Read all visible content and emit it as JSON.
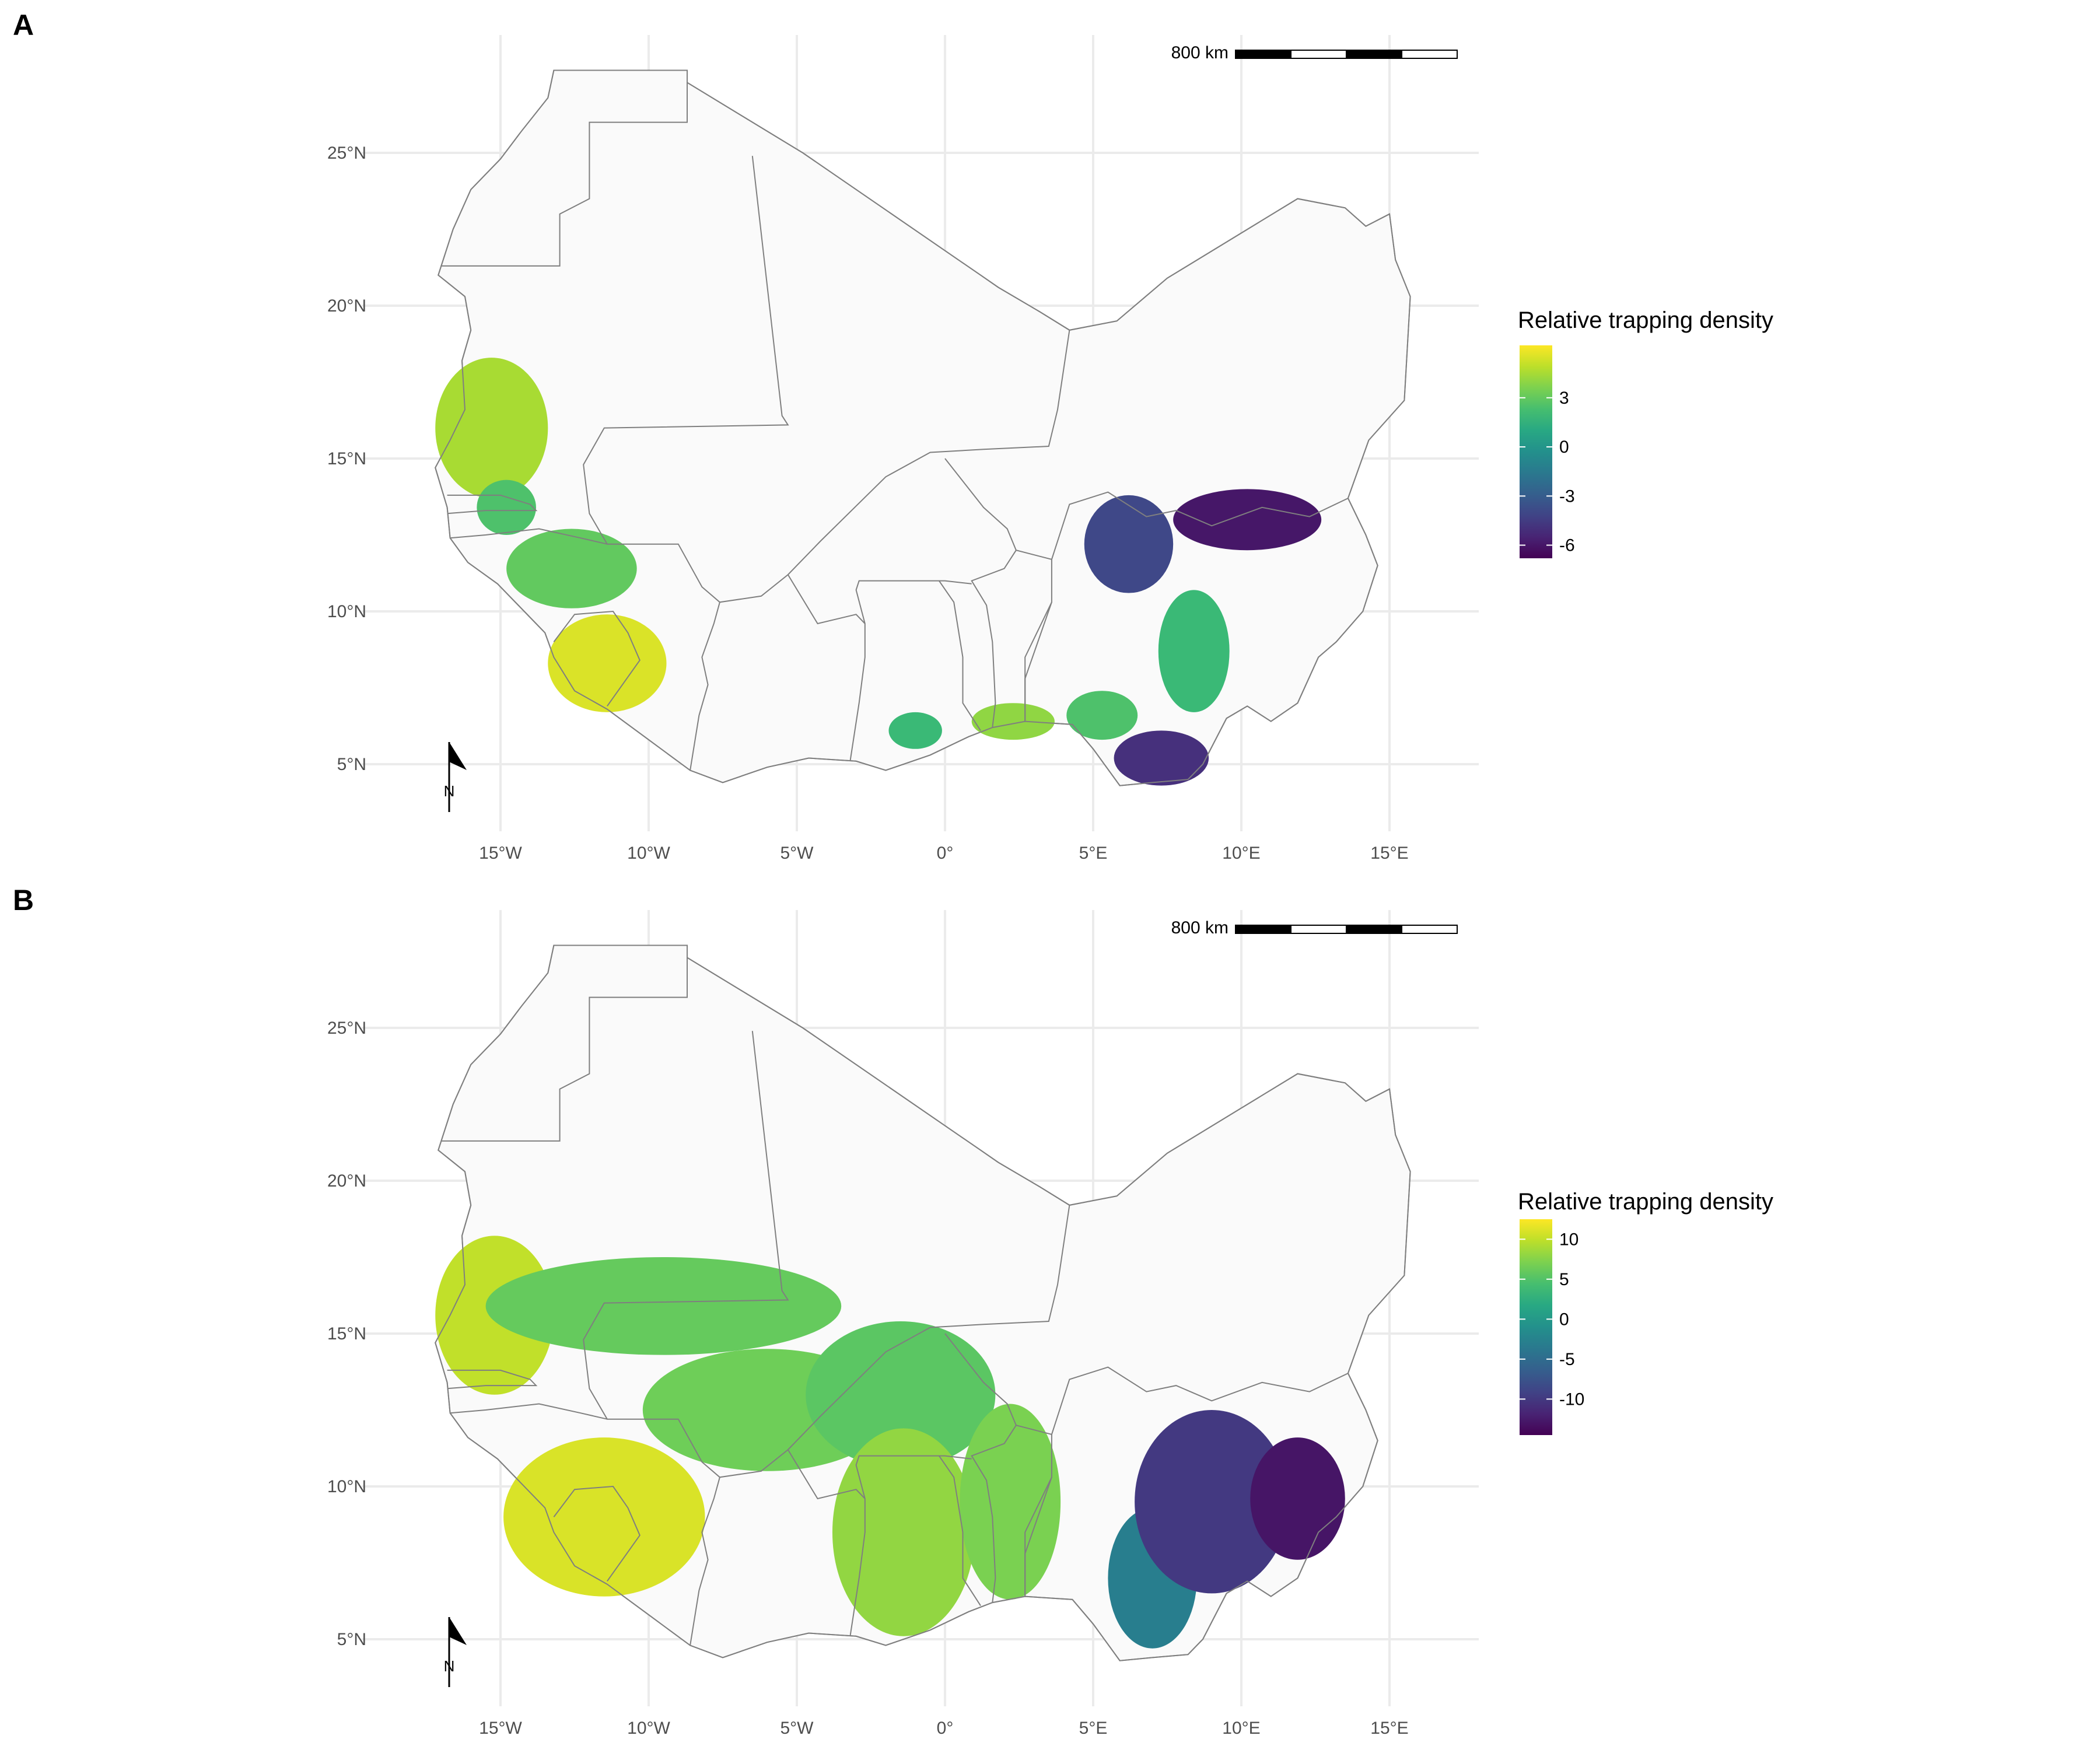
{
  "panels": [
    {
      "letter": "A",
      "x_ticks": [
        "15°W",
        "10°W",
        "5°W",
        "0°",
        "5°E",
        "10°E",
        "15°E"
      ],
      "y_ticks": [
        "5°N",
        "10°N",
        "15°N",
        "20°N",
        "25°N"
      ],
      "scalebar_label": "800 km",
      "north_label": "N",
      "legend": {
        "title": "Relative trapping density",
        "ticks": [
          "3",
          "0",
          "-3",
          "-6"
        ],
        "tick_values": [
          3,
          0,
          -3,
          -6
        ],
        "range": [
          -6.8,
          6.2
        ]
      },
      "density_patches": [
        {
          "region": "Senegal/Mauritania coast",
          "value": 4.5
        },
        {
          "region": "Gambia/Guinea-Bissau",
          "value": 2.5
        },
        {
          "region": "Guinea",
          "value": 3.0
        },
        {
          "region": "Sierra Leone",
          "value": 5.5
        },
        {
          "region": "Ghana south",
          "value": 2.0
        },
        {
          "region": "Togo/Benin coast",
          "value": 4.0
        },
        {
          "region": "Nigeria south-west",
          "value": 2.5
        },
        {
          "region": "Nigeria central",
          "value": 2.0
        },
        {
          "region": "Niger Delta",
          "value": -5.0
        },
        {
          "region": "Nigeria north arc",
          "value": -4.0
        },
        {
          "region": "Nigeria north-east",
          "value": -6.0
        }
      ]
    },
    {
      "letter": "B",
      "x_ticks": [
        "15°W",
        "10°W",
        "5°W",
        "0°",
        "5°E",
        "10°E",
        "15°E"
      ],
      "y_ticks": [
        "5°N",
        "10°N",
        "15°N",
        "20°N",
        "25°N"
      ],
      "scalebar_label": "800 km",
      "north_label": "N",
      "legend": {
        "title": "Relative trapping density",
        "ticks": [
          "10",
          "5",
          "0",
          "-5",
          "-10"
        ],
        "tick_values": [
          10,
          5,
          0,
          -5,
          -10
        ],
        "range": [
          -14.5,
          12.5
        ]
      },
      "density_patches": [
        {
          "region": "Senegal coast",
          "value": 10.0
        },
        {
          "region": "Sahel belt",
          "value": 6.0
        },
        {
          "region": "Guinea highlands",
          "value": 11.0
        },
        {
          "region": "Mali south",
          "value": 6.5
        },
        {
          "region": "Burkina Faso",
          "value": 5.5
        },
        {
          "region": "Ghana/Togo",
          "value": 8.0
        },
        {
          "region": "Benin",
          "value": 7.0
        },
        {
          "region": "Nigeria south-west",
          "value": -3.0
        },
        {
          "region": "Nigeria east",
          "value": -10.0
        },
        {
          "region": "Cameroon border",
          "value": -13.0
        }
      ]
    }
  ],
  "colors": {
    "grid": "#ebebeb",
    "land_fill": "#fafafa",
    "border": "#7f7f7f",
    "axis_text": "#4d4d4d"
  }
}
